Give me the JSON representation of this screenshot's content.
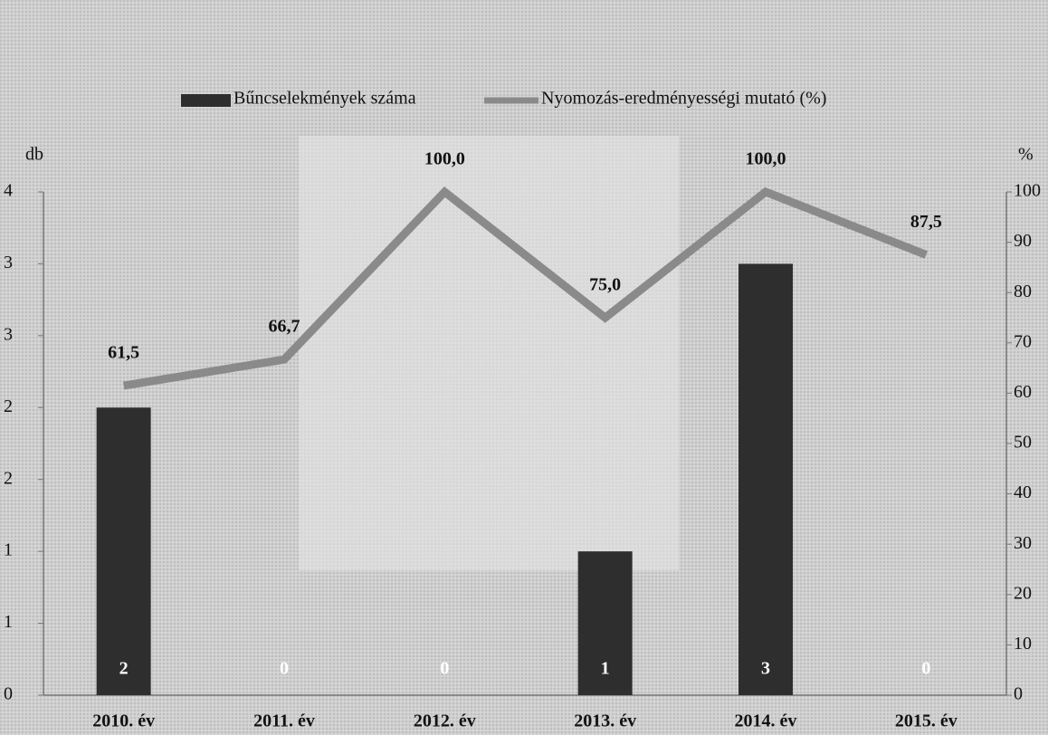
{
  "chart_data": {
    "type": "bar-line",
    "categories": [
      "2010. év",
      "2011. év",
      "2012. év",
      "2013. év",
      "2014. év",
      "2015. év"
    ],
    "ylabel": "db",
    "y2label": "%",
    "series": [
      {
        "name": "Bűncselekmények száma",
        "type": "bar",
        "color": "#2e2e2e",
        "values": [
          2,
          0,
          0,
          1,
          3,
          0
        ]
      },
      {
        "name": "Nyomozás-eredményességi mutató (%)",
        "type": "line",
        "axis": "y2",
        "color": "#8a8a8a",
        "values": [
          61.5,
          66.7,
          100,
          75,
          100,
          87.5
        ],
        "value_labels": [
          "61,5",
          "66,7",
          "100,0",
          "75,0",
          "100,0",
          "87,5"
        ]
      }
    ],
    "ylim": [
      0,
      3.5
    ],
    "yticks": [
      0,
      {
        "value": 0.5,
        "label": "1"
      },
      1,
      {
        "value": 1.5,
        "label": "2"
      },
      2,
      {
        "value": 2.5,
        "label": "3"
      },
      3,
      {
        "value": 3.5,
        "label": "4"
      }
    ],
    "y2lim": [
      0,
      100
    ],
    "y2ticks": [
      0,
      10,
      20,
      30,
      40,
      50,
      60,
      70,
      80,
      90,
      100
    ],
    "legend": "top"
  }
}
